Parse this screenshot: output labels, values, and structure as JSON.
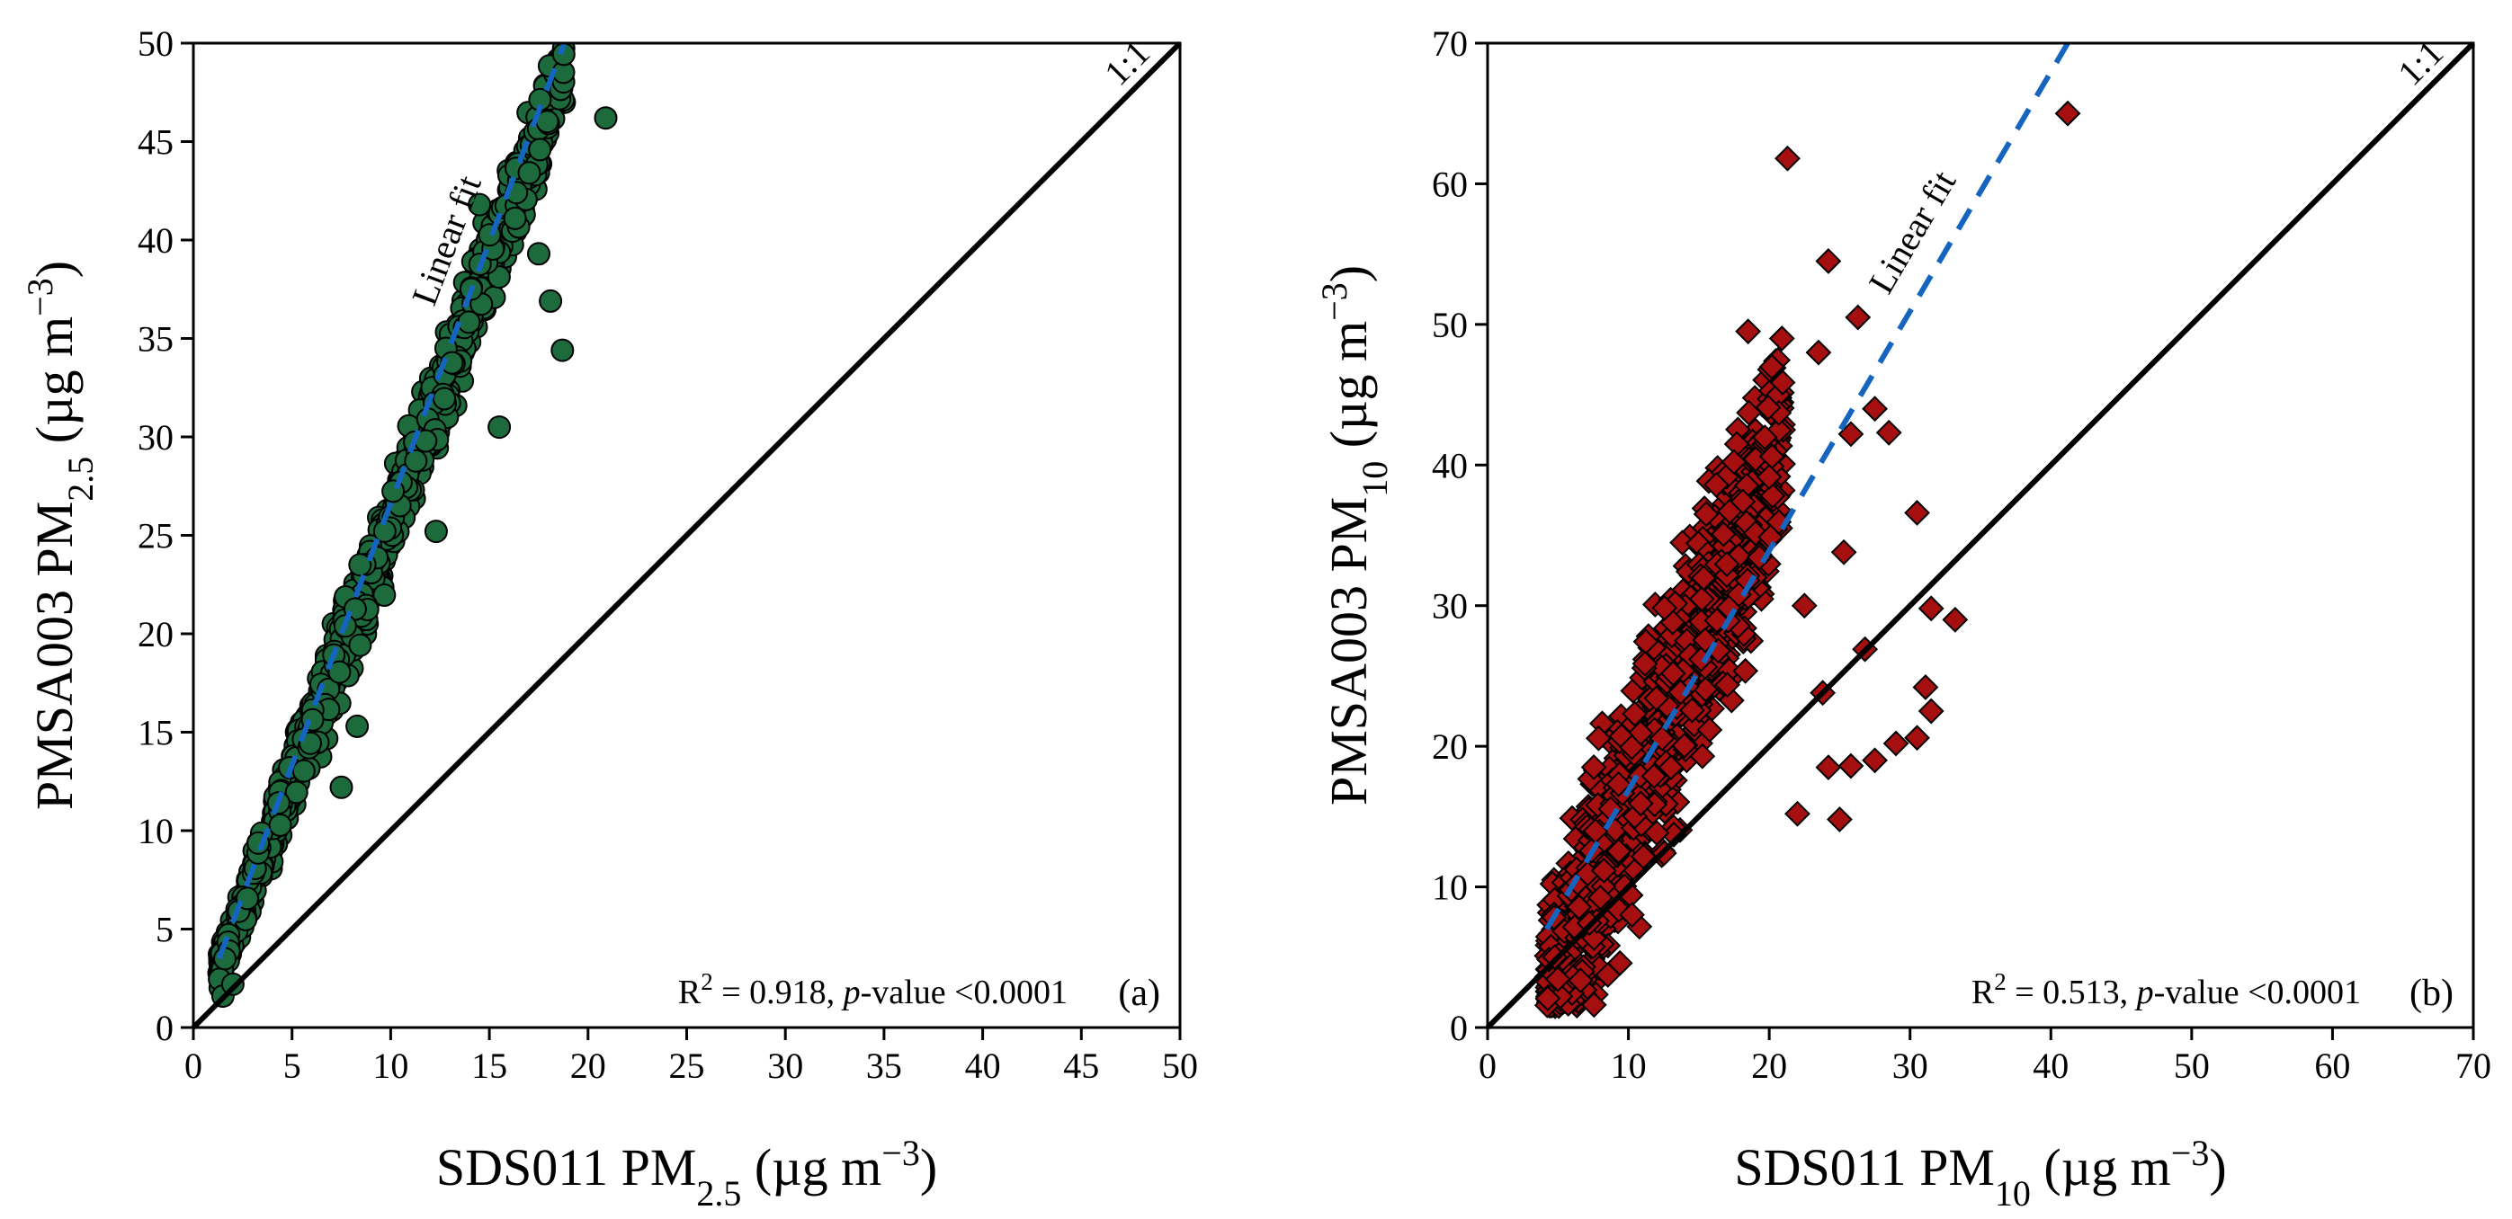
{
  "chart_data": [
    {
      "type": "scatter",
      "panel": "(a)",
      "xlabel": {
        "main": "SDS011 PM",
        "sub": "2.5",
        "unit": " (µg m",
        "sup": "−3",
        "close": ")"
      },
      "ylabel": {
        "main": "PMSA003 PM",
        "sub": "2.5",
        "unit": " (µg m",
        "sup": "−3",
        "close": ")"
      },
      "xlim": [
        0,
        50
      ],
      "ylim": [
        0,
        50
      ],
      "xticks": [
        "0",
        "5",
        "10",
        "15",
        "20",
        "25",
        "30",
        "35",
        "40",
        "45",
        "50"
      ],
      "yticks": [
        "0",
        "5",
        "10",
        "15",
        "20",
        "25",
        "30",
        "35",
        "40",
        "45",
        "50"
      ],
      "marker": "circle",
      "marker_color": "#1d6b3c",
      "fit_color": "#1565c0",
      "fit_line": {
        "label": "Linear fit",
        "x": [
          1.3,
          18.8
        ],
        "y": [
          3.5,
          50
        ]
      },
      "identity_line": {
        "label": "1:1",
        "x": [
          0,
          50
        ],
        "y": [
          0,
          50
        ]
      },
      "stats": {
        "r2_text": "R",
        "r2_sup": "2",
        "r2_value": " = 0.918, ",
        "p_italic": "p",
        "p_text": "-value <0.0001"
      },
      "trend": {
        "x_range": [
          1.3,
          18.8
        ],
        "slope": 2.62,
        "intercept": -0.5,
        "noise": 2.4,
        "count": 900
      },
      "highlighted_points": [
        {
          "x": 20.9,
          "y": 46.2
        },
        {
          "x": 18.7,
          "y": 34.4
        },
        {
          "x": 18.1,
          "y": 36.9
        },
        {
          "x": 17.5,
          "y": 39.3
        },
        {
          "x": 16.3,
          "y": 41.1
        },
        {
          "x": 15.5,
          "y": 30.5
        },
        {
          "x": 14.5,
          "y": 41.8
        },
        {
          "x": 12.3,
          "y": 25.2
        },
        {
          "x": 7.5,
          "y": 12.2
        },
        {
          "x": 8.3,
          "y": 15.3
        },
        {
          "x": 1.5,
          "y": 1.6
        },
        {
          "x": 2.0,
          "y": 2.2
        }
      ]
    },
    {
      "type": "scatter",
      "panel": "(b)",
      "xlabel": {
        "main": "SDS011 PM",
        "sub": "10",
        "unit": " (µg m",
        "sup": "−3",
        "close": ")"
      },
      "ylabel": {
        "main": "PMSA003 PM",
        "sub": "10",
        "unit": " (µg m",
        "sup": "−3",
        "close": ")"
      },
      "xlim": [
        0,
        70
      ],
      "ylim": [
        0,
        70
      ],
      "xticks": [
        "0",
        "10",
        "20",
        "30",
        "40",
        "50",
        "60",
        "70"
      ],
      "yticks": [
        "0",
        "10",
        "20",
        "30",
        "40",
        "50",
        "60",
        "70"
      ],
      "marker": "diamond",
      "marker_color": "#a50f0f",
      "fit_color": "#1565c0",
      "fit_line": {
        "label": "Linear fit",
        "x": [
          4.2,
          41.2
        ],
        "y": [
          7,
          70
        ]
      },
      "identity_line": {
        "label": "1:1",
        "x": [
          0,
          70
        ],
        "y": [
          0,
          70
        ]
      },
      "stats": {
        "r2_text": "R",
        "r2_sup": "2",
        "r2_value": " = 0.513, ",
        "p_italic": "p",
        "p_text": "-value <0.0001"
      },
      "trend": {
        "x_range": [
          4.2,
          21
        ],
        "slope": 2.3,
        "intercept": -7,
        "noise": 9,
        "count": 1000
      },
      "highlighted_points": [
        {
          "x": 41.2,
          "y": 65.0
        },
        {
          "x": 21.3,
          "y": 61.8
        },
        {
          "x": 24.2,
          "y": 54.5
        },
        {
          "x": 26.3,
          "y": 50.5
        },
        {
          "x": 25.8,
          "y": 42.2
        },
        {
          "x": 28.5,
          "y": 42.3
        },
        {
          "x": 27.5,
          "y": 44.0
        },
        {
          "x": 30.5,
          "y": 36.6
        },
        {
          "x": 33.2,
          "y": 29.0
        },
        {
          "x": 31.5,
          "y": 29.8
        },
        {
          "x": 31.5,
          "y": 22.5
        },
        {
          "x": 30.5,
          "y": 20.6
        },
        {
          "x": 31.1,
          "y": 24.2
        },
        {
          "x": 26.8,
          "y": 26.9
        },
        {
          "x": 25.0,
          "y": 14.8
        },
        {
          "x": 25.8,
          "y": 18.6
        },
        {
          "x": 22.0,
          "y": 15.2
        },
        {
          "x": 24.2,
          "y": 18.5
        },
        {
          "x": 29.0,
          "y": 20.2
        },
        {
          "x": 27.5,
          "y": 19.0
        },
        {
          "x": 23.8,
          "y": 23.8
        },
        {
          "x": 22.5,
          "y": 30.0
        },
        {
          "x": 25.3,
          "y": 33.8
        },
        {
          "x": 20.9,
          "y": 49.0
        },
        {
          "x": 18.5,
          "y": 49.5
        },
        {
          "x": 23.5,
          "y": 48.0
        }
      ]
    }
  ]
}
